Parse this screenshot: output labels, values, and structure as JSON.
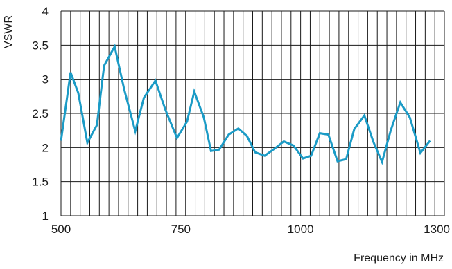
{
  "chart_data": {
    "type": "line",
    "xlabel": "Frequency in MHz",
    "ylabel": "VSWR",
    "xlim": [
      500,
      1300
    ],
    "ylim": [
      1,
      4
    ],
    "grid": true,
    "x_gridline_step": 20,
    "x_ticks": [
      {
        "value": 500,
        "label": "500"
      },
      {
        "value": 750,
        "label": "750"
      },
      {
        "value": 1000,
        "label": "1000"
      },
      {
        "value": 1300,
        "label": "1300"
      }
    ],
    "y_ticks": [
      {
        "value": 1,
        "label": "1"
      },
      {
        "value": 1.5,
        "label": "1.5"
      },
      {
        "value": 2,
        "label": "2"
      },
      {
        "value": 2.5,
        "label": "2.5"
      },
      {
        "value": 3,
        "label": "3"
      },
      {
        "value": 3.5,
        "label": "3.5"
      },
      {
        "value": 4,
        "label": "4"
      }
    ],
    "series": [
      {
        "color": "#1b9bc6",
        "points": [
          [
            500,
            2.1
          ],
          [
            520,
            3.1
          ],
          [
            536,
            2.8
          ],
          [
            555,
            2.07
          ],
          [
            575,
            2.33
          ],
          [
            590,
            3.2
          ],
          [
            612,
            3.48
          ],
          [
            632,
            2.85
          ],
          [
            655,
            2.24
          ],
          [
            673,
            2.73
          ],
          [
            697,
            2.98
          ],
          [
            718,
            2.55
          ],
          [
            742,
            2.14
          ],
          [
            763,
            2.38
          ],
          [
            778,
            2.82
          ],
          [
            798,
            2.44
          ],
          [
            813,
            1.95
          ],
          [
            830,
            1.97
          ],
          [
            850,
            2.19
          ],
          [
            870,
            2.28
          ],
          [
            888,
            2.17
          ],
          [
            905,
            1.93
          ],
          [
            925,
            1.88
          ],
          [
            945,
            1.98
          ],
          [
            965,
            2.09
          ],
          [
            985,
            2.03
          ],
          [
            1005,
            1.84
          ],
          [
            1022,
            1.88
          ],
          [
            1040,
            2.21
          ],
          [
            1058,
            2.19
          ],
          [
            1077,
            1.8
          ],
          [
            1095,
            1.83
          ],
          [
            1112,
            2.27
          ],
          [
            1133,
            2.47
          ],
          [
            1152,
            2.08
          ],
          [
            1170,
            1.79
          ],
          [
            1188,
            2.25
          ],
          [
            1208,
            2.66
          ],
          [
            1228,
            2.44
          ],
          [
            1250,
            1.92
          ],
          [
            1270,
            2.1
          ]
        ]
      }
    ]
  }
}
